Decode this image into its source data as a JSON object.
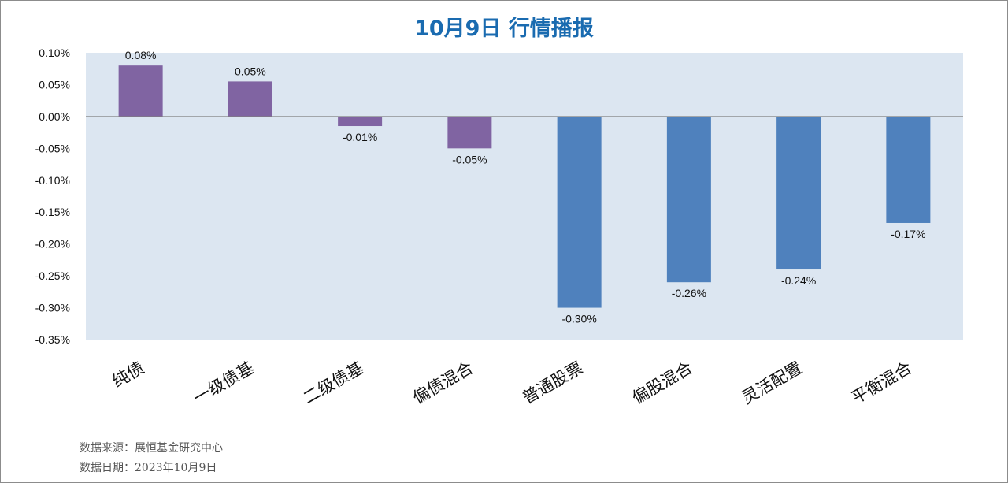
{
  "chart_data": {
    "type": "bar",
    "title": "10月9日  行情播报",
    "categories": [
      "纯债",
      "一级债基",
      "二级债基",
      "偏债混合",
      "普通股票",
      "偏股混合",
      "灵活配置",
      "平衡混合"
    ],
    "values": [
      0.08,
      0.055,
      -0.015,
      -0.05,
      -0.3,
      -0.26,
      -0.24,
      -0.167
    ],
    "value_labels": [
      "0.08%",
      "0.05%",
      "-0.01%",
      "-0.05%",
      "-0.30%",
      "-0.26%",
      "-0.24%",
      "-0.17%"
    ],
    "bar_colors": [
      "#8064a2",
      "#8064a2",
      "#8064a2",
      "#8064a2",
      "#4f81bd",
      "#4f81bd",
      "#4f81bd",
      "#4f81bd"
    ],
    "ylim": [
      -0.35,
      0.1
    ],
    "yticks": [
      0.1,
      0.05,
      0.0,
      -0.05,
      -0.1,
      -0.15,
      -0.2,
      -0.25,
      -0.3,
      -0.35
    ],
    "ytick_labels": [
      "0.10%",
      "0.05%",
      "0.00%",
      "-0.05%",
      "-0.10%",
      "-0.15%",
      "-0.20%",
      "-0.25%",
      "-0.30%",
      "-0.35%"
    ],
    "xlabel": "",
    "ylabel": "",
    "grid": false,
    "legend": "none",
    "plot_background": "#dce6f1"
  },
  "footer": {
    "source": "数据来源：展恒基金研究中心",
    "date": "数据日期：2023年10月9日"
  }
}
